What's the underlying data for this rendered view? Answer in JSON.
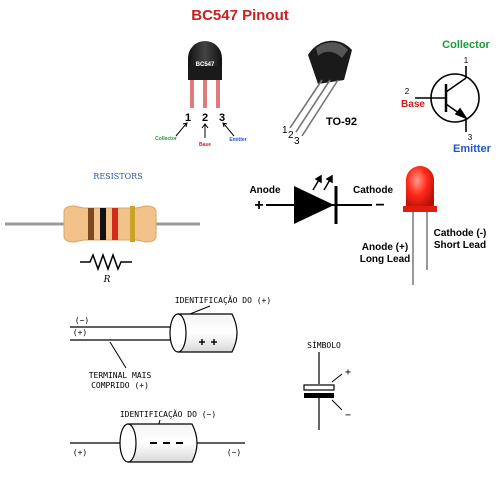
{
  "bc547": {
    "title": "BC547 Pinout",
    "chip_label": "BC547",
    "pin1": "1",
    "pin2": "2",
    "pin3": "3",
    "collector": "Collector",
    "base": "Base",
    "emitter": "Emitter",
    "to92": {
      "pin1": "1",
      "pin2": "2",
      "pin3": "3",
      "package": "TO-92"
    },
    "symbol": {
      "collector": "Collector",
      "base": "Base",
      "emitter": "Emitter",
      "n1": "1",
      "n2": "2",
      "n3": "3"
    },
    "colors": {
      "title": "#cc1f1f",
      "collector": "#1a9a3a",
      "base": "#cc1f1f",
      "emitter": "#1f57c8",
      "lead": "#e07b7b"
    }
  },
  "resistor": {
    "heading": "RESISTORS",
    "symbol_label": "R",
    "colors": {
      "body": "#f2c28a",
      "band1": "#7a4a1e",
      "band2": "#111111",
      "band3": "#d42a1c",
      "band4": "#c9a227"
    }
  },
  "diode": {
    "anode": "Anode",
    "cathode": "Cathode",
    "plus": "+",
    "minus": "−"
  },
  "led": {
    "anode_line1": "Anode (+)",
    "anode_line2": "Long Lead",
    "cathode_line1": "Cathode (-)",
    "cathode_line2": "Short Lead",
    "color": "#ff2a1a"
  },
  "capacitor": {
    "ident_plus": "IDENTIFICAÇÃO DO (+)",
    "minus_lead": "(−)",
    "plus_lead": "(+)",
    "terminal_line1": "TERMINAL MAIS",
    "terminal_line2": "COMPRIDO (+)",
    "ident_minus": "IDENTIFICAÇÃO DO (−)",
    "axial_plus": "(+)",
    "axial_minus": "(−)",
    "symbol_title": "SÍMBOLO",
    "sym_plus": "+",
    "sym_minus": "−"
  }
}
